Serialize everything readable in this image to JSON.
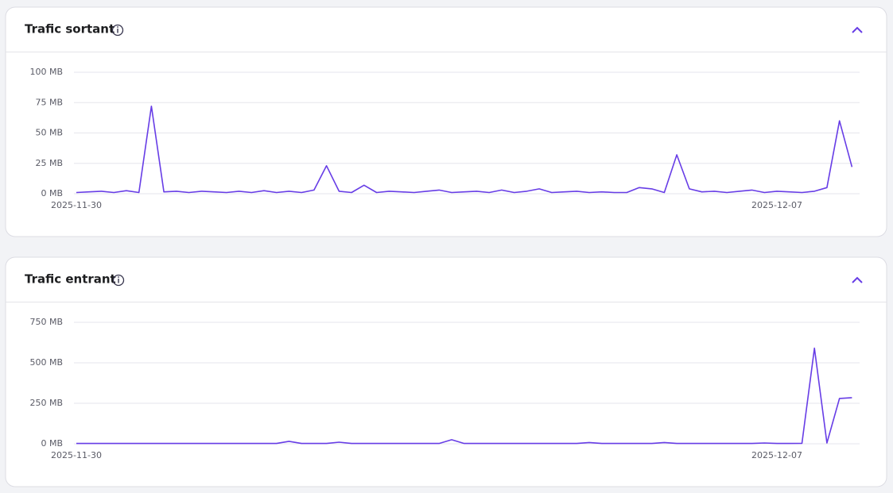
{
  "chart_data": [
    {
      "type": "line",
      "title": "Trafic sortant",
      "categories": [
        "2025-11-30",
        null,
        null,
        null,
        null,
        null,
        null,
        null,
        null,
        null,
        null,
        null,
        null,
        null,
        null,
        null,
        null,
        null,
        null,
        null,
        null,
        null,
        null,
        null,
        null,
        null,
        null,
        null,
        null,
        null,
        null,
        null,
        null,
        null,
        null,
        null,
        null,
        null,
        null,
        null,
        null,
        null,
        null,
        null,
        null,
        null,
        null,
        null,
        null,
        null,
        null,
        null,
        null,
        null,
        null,
        null,
        "2025-12-07",
        null,
        null,
        null,
        null,
        null,
        null
      ],
      "values": [
        1,
        1.5,
        2,
        1,
        2.5,
        1,
        72,
        1.5,
        2,
        1,
        2,
        1.5,
        1,
        2,
        1,
        2.5,
        1,
        2,
        1,
        3,
        23,
        2,
        1,
        7,
        1,
        2,
        1.5,
        1,
        2,
        3,
        1,
        1.5,
        2,
        1,
        3,
        1,
        2,
        4,
        1,
        1.5,
        2,
        1,
        1.5,
        1,
        1,
        5,
        4,
        1,
        32,
        4,
        1.5,
        2,
        1,
        2,
        3,
        1,
        2,
        1.5,
        1,
        2,
        5,
        60,
        22
      ],
      "color": "#673de6",
      "ylim": [
        0,
        100
      ],
      "yticks": [
        {
          "value": 0,
          "label": "0 MB"
        },
        {
          "value": 25,
          "label": "25 MB"
        },
        {
          "value": 50,
          "label": "50 MB"
        },
        {
          "value": 75,
          "label": "75 MB"
        },
        {
          "value": 100,
          "label": "100 MB"
        }
      ],
      "grid": true
    },
    {
      "type": "line",
      "title": "Trafic entrant",
      "categories": [
        "2025-11-30",
        null,
        null,
        null,
        null,
        null,
        null,
        null,
        null,
        null,
        null,
        null,
        null,
        null,
        null,
        null,
        null,
        null,
        null,
        null,
        null,
        null,
        null,
        null,
        null,
        null,
        null,
        null,
        null,
        null,
        null,
        null,
        null,
        null,
        null,
        null,
        null,
        null,
        null,
        null,
        null,
        null,
        null,
        null,
        null,
        null,
        null,
        null,
        null,
        null,
        null,
        null,
        null,
        null,
        null,
        null,
        "2025-12-07",
        null,
        null,
        null,
        null,
        null,
        null
      ],
      "values": [
        2,
        2,
        2,
        2,
        2,
        2,
        2,
        2,
        2,
        2,
        2,
        2,
        2,
        2,
        2,
        2,
        2,
        15,
        2,
        2,
        2,
        10,
        2,
        2,
        2,
        2,
        2,
        2,
        2,
        2,
        25,
        2,
        2,
        2,
        2,
        2,
        2,
        2,
        2,
        2,
        2,
        8,
        2,
        2,
        2,
        2,
        2,
        8,
        2,
        2,
        2,
        2,
        2,
        2,
        2,
        5,
        2,
        2,
        3,
        590,
        5,
        280,
        285
      ],
      "color": "#673de6",
      "ylim": [
        0,
        750
      ],
      "yticks": [
        {
          "value": 0,
          "label": "0 MB"
        },
        {
          "value": 250,
          "label": "250 MB"
        },
        {
          "value": 500,
          "label": "500 MB"
        },
        {
          "value": 750,
          "label": "750 MB"
        }
      ],
      "grid": true
    }
  ]
}
